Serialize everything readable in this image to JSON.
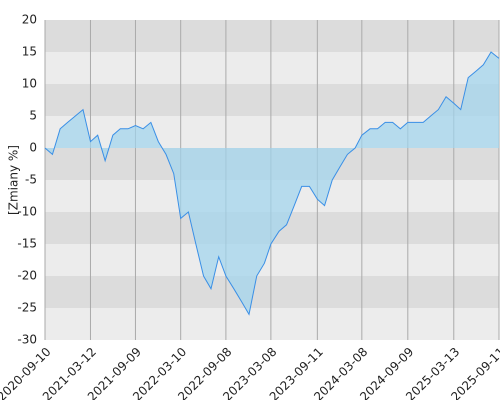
{
  "chart_data": {
    "type": "line",
    "y_label": "[Zmiany %]",
    "xlim": [
      "2020-09-10",
      "2025-09-11"
    ],
    "xticks": [
      "2020-09-10",
      "2021-03-12",
      "2021-09-09",
      "2022-03-10",
      "2022-09-08",
      "2023-03-08",
      "2023-09-11",
      "2024-03-08",
      "2024-09-09",
      "2025-03-13",
      "2025-09-11"
    ],
    "ylim": [
      -30,
      20
    ],
    "yticks": [
      -30,
      -25,
      -20,
      -15,
      -10,
      -5,
      0,
      5,
      10,
      15,
      20
    ],
    "grid": true,
    "series": [
      {
        "color": "#3a8fe6",
        "x": [
          "2020-09-10",
          "2020-10-10",
          "2020-11-10",
          "2020-12-10",
          "2021-01-10",
          "2021-02-10",
          "2021-03-12",
          "2021-04-10",
          "2021-05-10",
          "2021-06-10",
          "2021-07-10",
          "2021-08-10",
          "2021-09-09",
          "2021-10-10",
          "2021-11-10",
          "2021-12-10",
          "2022-01-10",
          "2022-02-10",
          "2022-03-10",
          "2022-04-10",
          "2022-05-10",
          "2022-06-10",
          "2022-07-10",
          "2022-08-10",
          "2022-09-08",
          "2022-10-10",
          "2022-11-10",
          "2022-12-10",
          "2023-01-10",
          "2023-02-10",
          "2023-03-08",
          "2023-04-10",
          "2023-05-10",
          "2023-06-10",
          "2023-07-10",
          "2023-08-10",
          "2023-09-11",
          "2023-10-10",
          "2023-11-10",
          "2023-12-10",
          "2024-01-10",
          "2024-02-10",
          "2024-03-08",
          "2024-04-10",
          "2024-05-10",
          "2024-06-10",
          "2024-07-10",
          "2024-08-10",
          "2024-09-09",
          "2024-10-10",
          "2024-11-10",
          "2024-12-10",
          "2025-01-10",
          "2025-02-10",
          "2025-03-13",
          "2025-04-10",
          "2025-05-10",
          "2025-06-10",
          "2025-07-10",
          "2025-08-10",
          "2025-09-11"
        ],
        "values": [
          0,
          -1,
          3,
          4,
          5,
          6,
          1,
          2,
          -2,
          2,
          3,
          3,
          3.5,
          3,
          4,
          1,
          -1,
          -4,
          -11,
          -10,
          -15,
          -20,
          -22,
          -17,
          -20,
          -22,
          -24,
          -26,
          -20,
          -18,
          -15,
          -13,
          -12,
          -9,
          -6,
          -6,
          -8,
          -9,
          -5,
          -3,
          -1,
          0,
          2,
          3,
          3,
          4,
          4,
          3,
          4,
          4,
          4,
          5,
          6,
          8,
          7,
          6,
          11,
          12,
          13,
          15,
          14
        ]
      }
    ]
  }
}
